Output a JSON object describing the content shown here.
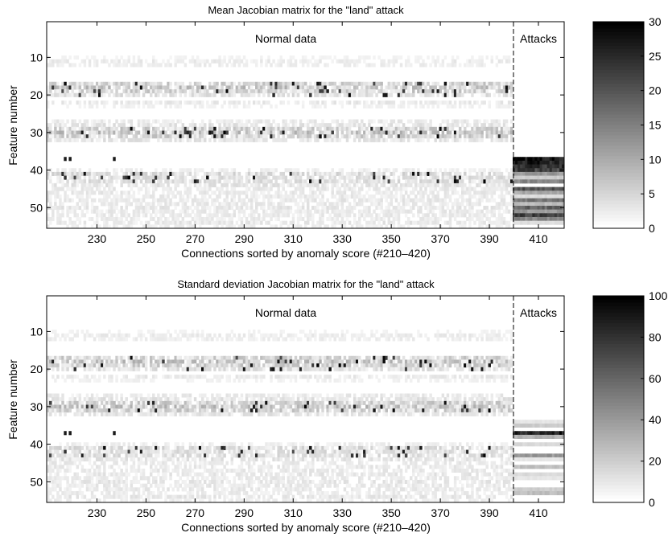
{
  "chart_data": [
    {
      "type": "heatmap",
      "title": "Mean Jacobian matrix for the \"land\" attack",
      "xlabel": "Connections sorted by anomaly score (#210–420)",
      "ylabel": "Feature number",
      "xlim": [
        210,
        420
      ],
      "ylim": [
        1,
        55
      ],
      "x_ticks": [
        "230",
        "250",
        "270",
        "290",
        "310",
        "330",
        "350",
        "370",
        "390",
        "410"
      ],
      "y_ticks": [
        "10",
        "20",
        "30",
        "40",
        "50"
      ],
      "annotations": [
        "Normal data",
        "Attacks"
      ],
      "boundary_x": 400,
      "colorbar_ticks": [
        "0",
        "5",
        "10",
        "15",
        "20",
        "25",
        "30"
      ],
      "colorbar_range": [
        0,
        30
      ],
      "colormap": "gray-inverted",
      "attack_rows": [
        {
          "feature": 37,
          "value": 28
        },
        {
          "feature": 38,
          "value": 26
        },
        {
          "feature": 39,
          "value": 24
        },
        {
          "feature": 40,
          "value": 22
        },
        {
          "feature": 41,
          "value": 12
        },
        {
          "feature": 42,
          "value": 6
        },
        {
          "feature": 43,
          "value": 14
        },
        {
          "feature": 45,
          "value": 20
        },
        {
          "feature": 46,
          "value": 10
        },
        {
          "feature": 47,
          "value": 4
        },
        {
          "feature": 48,
          "value": 16
        },
        {
          "feature": 49,
          "value": 8
        },
        {
          "feature": 50,
          "value": 18
        },
        {
          "feature": 51,
          "value": 12
        },
        {
          "feature": 52,
          "value": 22
        },
        {
          "feature": 53,
          "value": 14
        },
        {
          "feature": 54,
          "value": 4
        }
      ]
    },
    {
      "type": "heatmap",
      "title": "Standard deviation Jacobian matrix for the \"land\" attack",
      "xlabel": "Connections sorted by anomaly score (#210–420)",
      "ylabel": "Feature number",
      "xlim": [
        210,
        420
      ],
      "ylim": [
        1,
        55
      ],
      "x_ticks": [
        "230",
        "250",
        "270",
        "290",
        "310",
        "330",
        "350",
        "370",
        "390",
        "410"
      ],
      "y_ticks": [
        "10",
        "20",
        "30",
        "40",
        "50"
      ],
      "annotations": [
        "Normal data",
        "Attacks"
      ],
      "boundary_x": 400,
      "colorbar_ticks": [
        "0",
        "20",
        "40",
        "60",
        "80",
        "100"
      ],
      "colorbar_range": [
        0,
        100
      ],
      "colormap": "gray-inverted",
      "attack_rows": [
        {
          "feature": 34,
          "value": 10
        },
        {
          "feature": 35,
          "value": 20
        },
        {
          "feature": 37,
          "value": 90
        },
        {
          "feature": 38,
          "value": 30
        },
        {
          "feature": 40,
          "value": 15
        },
        {
          "feature": 43,
          "value": 40
        },
        {
          "feature": 44,
          "value": 10
        },
        {
          "feature": 46,
          "value": 25
        },
        {
          "feature": 48,
          "value": 15
        },
        {
          "feature": 49,
          "value": 10
        },
        {
          "feature": 52,
          "value": 20
        },
        {
          "feature": 53,
          "value": 25
        }
      ]
    }
  ]
}
